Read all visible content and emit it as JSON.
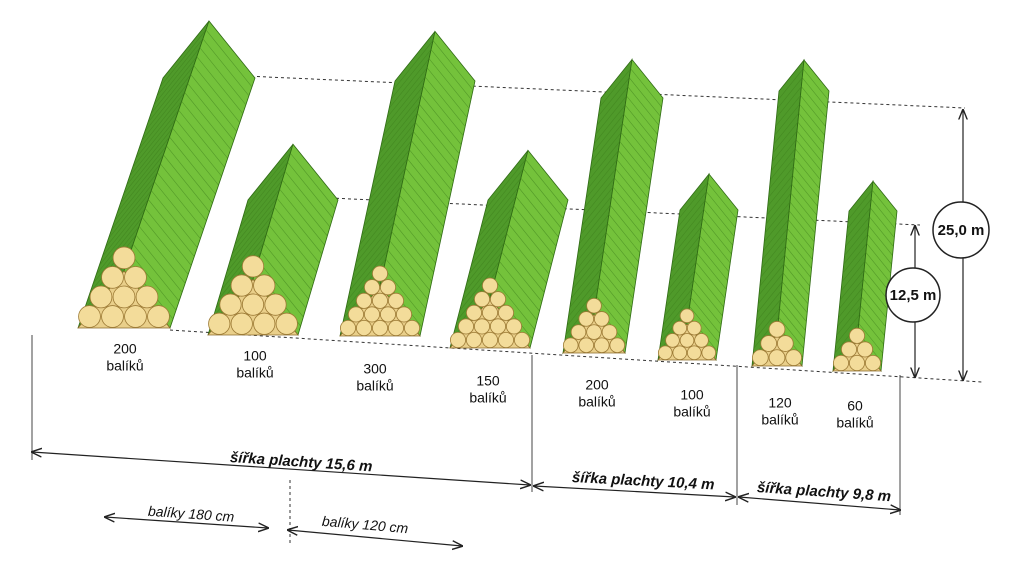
{
  "stacks": [
    {
      "count": "200",
      "unit": "balíků"
    },
    {
      "count": "100",
      "unit": "balíků"
    },
    {
      "count": "300",
      "unit": "balíků"
    },
    {
      "count": "150",
      "unit": "balíků"
    },
    {
      "count": "200",
      "unit": "balíků"
    },
    {
      "count": "100",
      "unit": "balíků"
    },
    {
      "count": "120",
      "unit": "balíků"
    },
    {
      "count": "60",
      "unit": "balíků"
    }
  ],
  "heights": {
    "full": "25,0 m",
    "half": "12,5 m"
  },
  "widths": [
    "šířka plachty 15,6 m",
    "šířka plachty 10,4 m",
    "šířka plachty 9,8 m"
  ],
  "bales": [
    "balíky 180 cm",
    "balíky 120 cm"
  ]
}
